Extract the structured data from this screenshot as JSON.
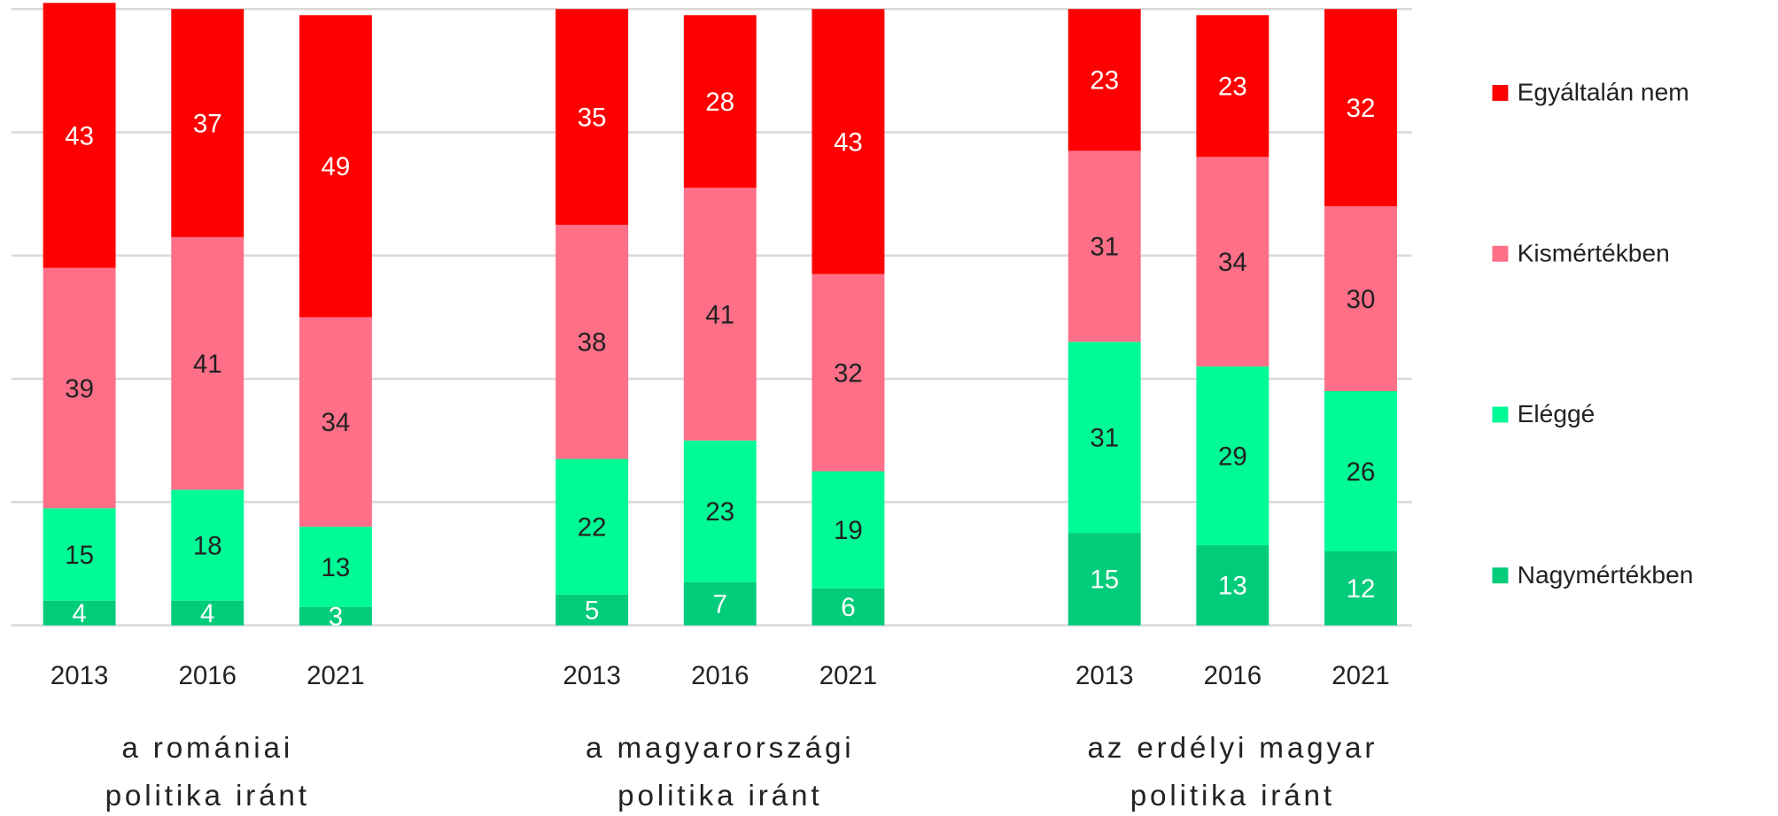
{
  "chart_data": {
    "type": "stacked_bar",
    "categories": [
      "2013",
      "2016",
      "2021",
      "2013",
      "2016",
      "2021",
      "2013",
      "2016",
      "2021"
    ],
    "groups": [
      {
        "lines": [
          "a romániai",
          "politika iránt"
        ]
      },
      {
        "lines": [
          "a magyarországi",
          "politika iránt"
        ]
      },
      {
        "lines": [
          "az erdélyi magyar",
          "politika iránt"
        ]
      }
    ],
    "series": [
      {
        "name": "Nagymértékben",
        "color": "#00cc7a",
        "label_color": "#ffffff",
        "values": [
          4,
          4,
          3,
          5,
          7,
          6,
          15,
          13,
          12
        ]
      },
      {
        "name": "Eléggé",
        "color": "#00fa95",
        "label_color": "#222222",
        "values": [
          15,
          18,
          13,
          22,
          23,
          19,
          31,
          29,
          26
        ]
      },
      {
        "name": "Kismértékben",
        "color": "#ff6f88",
        "label_color": "#222222",
        "values": [
          39,
          41,
          34,
          38,
          41,
          32,
          31,
          34,
          30
        ]
      },
      {
        "name": "Egyáltalán nem",
        "color": "#ff0000",
        "label_color": "#ffffff",
        "values": [
          43,
          37,
          49,
          35,
          28,
          43,
          23,
          23,
          32
        ]
      }
    ],
    "ylim": [
      0,
      100
    ],
    "yticks": [
      0,
      20,
      40,
      60,
      80,
      100
    ],
    "grid": true,
    "legend": "right"
  }
}
